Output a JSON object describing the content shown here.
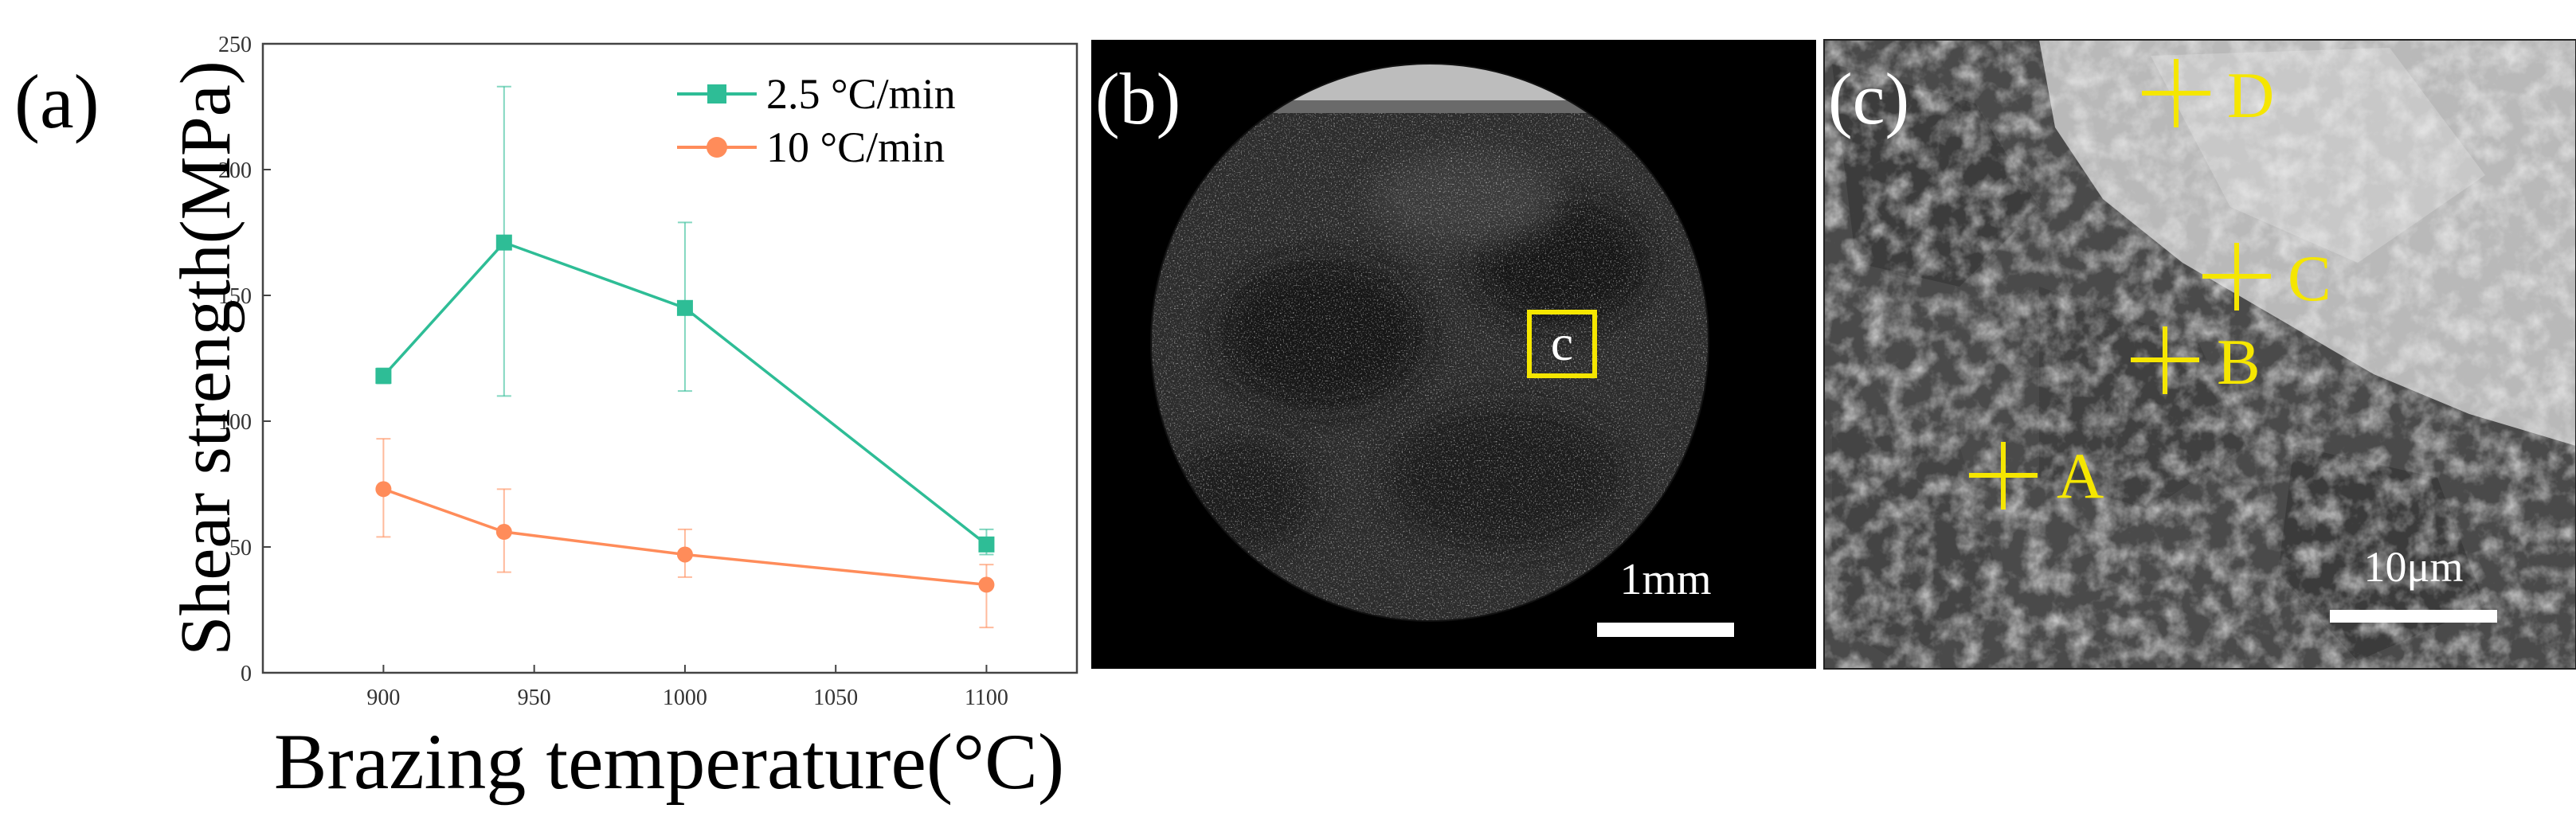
{
  "panels": {
    "a_label": "(a)",
    "b_label": "(b)",
    "c_label": "(c)"
  },
  "chart_data": {
    "type": "line",
    "title": "",
    "xlabel": "Brazing temperature(°C)",
    "ylabel": "Shear strength(MPa)",
    "xlim": [
      860,
      1130
    ],
    "ylim": [
      0,
      250
    ],
    "xticks": [
      900,
      950,
      1000,
      1050,
      1100
    ],
    "yticks": [
      0,
      50,
      100,
      150,
      200,
      250
    ],
    "legend_position": "top-right",
    "series": [
      {
        "name": "2.5 °C/min",
        "color": "#2ebd96",
        "marker": "square",
        "x": [
          900,
          940,
          1000,
          1100
        ],
        "y": [
          118,
          171,
          145,
          51
        ],
        "err_low": [
          115,
          110,
          112,
          47
        ],
        "err_high": [
          121,
          233,
          179,
          57
        ]
      },
      {
        "name": "10 °C/min",
        "color": "#ff8c5a",
        "marker": "circle",
        "x": [
          900,
          940,
          1000,
          1100
        ],
        "y": [
          73,
          56,
          47,
          35
        ],
        "err_low": [
          54,
          40,
          38,
          18
        ],
        "err_high": [
          93,
          73,
          57,
          43
        ]
      }
    ]
  },
  "image_b": {
    "box_label": "c",
    "scale_label": "1mm",
    "box_color": "#f5e600"
  },
  "image_c": {
    "point_labels": [
      "A",
      "B",
      "C",
      "D"
    ],
    "scale_label": "10μm",
    "marker_color": "#f5e600"
  }
}
